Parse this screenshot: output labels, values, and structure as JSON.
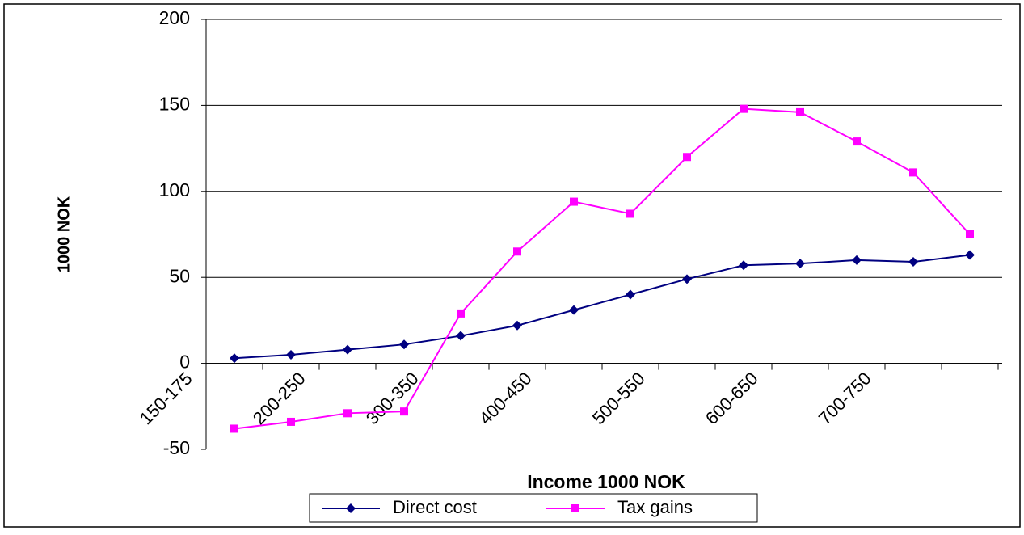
{
  "chart_data": {
    "type": "line",
    "x_label": "Income 1000 NOK",
    "y_label": "1000 NOK",
    "categories": [
      "150-175",
      null,
      "200-250",
      null,
      "300-350",
      null,
      "400-450",
      null,
      "500-550",
      null,
      "600-650",
      null,
      "700-750",
      null
    ],
    "series": [
      {
        "name": "Direct cost",
        "color": "#000080",
        "marker": "diamond",
        "values": [
          3,
          5,
          8,
          11,
          16,
          22,
          31,
          40,
          49,
          57,
          58,
          60,
          59,
          63
        ]
      },
      {
        "name": "Tax gains",
        "color": "#ff00ff",
        "marker": "square",
        "values": [
          -38,
          -34,
          -29,
          -28,
          29,
          65,
          94,
          87,
          120,
          148,
          146,
          129,
          111,
          75
        ]
      }
    ],
    "ylim": [
      -50,
      200
    ],
    "yticks": [
      -50,
      0,
      50,
      100,
      150,
      200
    ],
    "grid": true,
    "legend": "bottom"
  }
}
